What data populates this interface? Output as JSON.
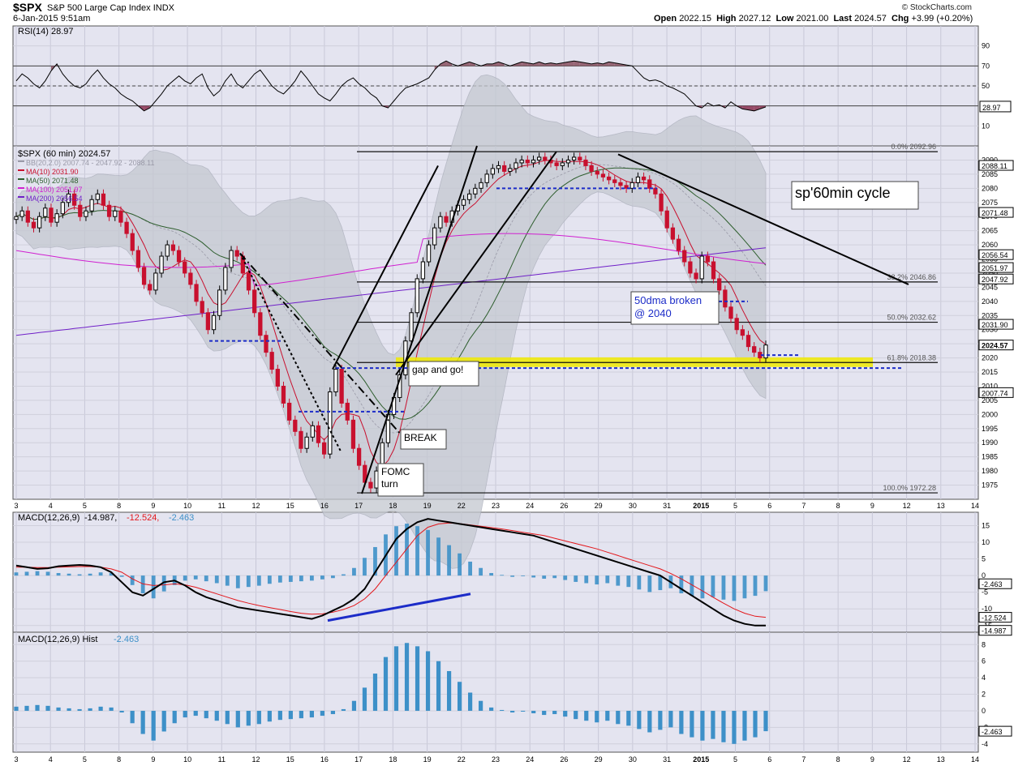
{
  "header": {
    "symbol": "$SPX",
    "name": "S&P 500 Large Cap Index",
    "exchange": "INDX",
    "date": "6-Jan-2015 9:51am",
    "open_label": "Open",
    "open": "2022.15",
    "high_label": "High",
    "high": "2027.12",
    "low_label": "Low",
    "low": "2021.00",
    "last_label": "Last",
    "last": "2024.57",
    "chg_label": "Chg",
    "chg": "+3.99 (+0.20%)",
    "copyright": "© StockCharts.com"
  },
  "chart_data": {
    "type": "candlestick",
    "colors": {
      "up": "#000000",
      "down": "#c8102e",
      "plot_bg": "#e4e4f0",
      "rsi_line": "#000000",
      "macd_line": "#000000",
      "signal_line": "#e3171b",
      "hist": "#3d90c8",
      "annotation_blue": "#1c2cc8",
      "support_zone": "#f0ea00"
    },
    "x_labels": [
      "3",
      "4",
      "5",
      "8",
      "9",
      "10",
      "11",
      "12",
      "15",
      "16",
      "17",
      "18",
      "19",
      "22",
      "23",
      "24",
      "26",
      "29",
      "30",
      "31",
      "2015",
      "5",
      "6",
      "7",
      "8",
      "9",
      "12",
      "13",
      "14"
    ],
    "panels": {
      "rsi": {
        "legend": "RSI(14) 28.97",
        "ylim": [
          -10,
          110
        ],
        "ticks": [
          90,
          70,
          50,
          30,
          10
        ],
        "reference_lines": [
          70,
          50,
          30
        ],
        "last_label": "28.97",
        "values": [
          55,
          62,
          58,
          52,
          48,
          55,
          65,
          72,
          62,
          55,
          50,
          48,
          52,
          60,
          66,
          58,
          52,
          48,
          42,
          38,
          35,
          30,
          25,
          28,
          35,
          42,
          50,
          55,
          60,
          55,
          52,
          58,
          62,
          48,
          40,
          45,
          55,
          62,
          52,
          48,
          55,
          62,
          66,
          58,
          50,
          45,
          42,
          48,
          55,
          65,
          58,
          50,
          42,
          38,
          35,
          42,
          50,
          55,
          58,
          52,
          48,
          42,
          38,
          30,
          28,
          35,
          42,
          48,
          50,
          52,
          55,
          58,
          66,
          72,
          75,
          72,
          70,
          72,
          74,
          72,
          70,
          72,
          72,
          74,
          72,
          70,
          72,
          74,
          73,
          72,
          74,
          72,
          73,
          72,
          73,
          74,
          75,
          74,
          73,
          72,
          73,
          72,
          74,
          73,
          72,
          71,
          70,
          64,
          58,
          55,
          56,
          54,
          50,
          48,
          45,
          42,
          36,
          30,
          28,
          33,
          30,
          31,
          28,
          34,
          30,
          27,
          26,
          25,
          27,
          29
        ]
      },
      "price": {
        "legend": [
          "$SPX (60 min) 2024.57",
          "BB(20,2.0) 2007.74 - 2047.92 - 2088.11",
          "MA(10) 2031.90",
          "MA(50) 2071.48",
          "MA(100) 2051.97",
          "MA(200) 2056.54"
        ],
        "legend_colors": [
          "#000000",
          "#9a9aa8",
          "#c8102e",
          "#2e5e2e",
          "#d020d0",
          "#7020c8"
        ],
        "ylim": [
          1970,
          2095
        ],
        "ticks": [
          2090,
          2085,
          2080,
          2075,
          2070,
          2065,
          2060,
          2055,
          2050,
          2045,
          2040,
          2035,
          2030,
          2025,
          2020,
          2015,
          2010,
          2005,
          2000,
          1995,
          1990,
          1985,
          1980,
          1975
        ],
        "close": [
          2070,
          2072,
          2068,
          2066,
          2070,
          2073,
          2068,
          2071,
          2075,
          2078,
          2074,
          2070,
          2072,
          2076,
          2078,
          2074,
          2070,
          2072,
          2068,
          2064,
          2058,
          2052,
          2046,
          2044,
          2050,
          2056,
          2060,
          2058,
          2054,
          2050,
          2046,
          2040,
          2036,
          2030,
          2035,
          2044,
          2052,
          2058,
          2056,
          2050,
          2044,
          2036,
          2028,
          2022,
          2016,
          2010,
          2004,
          1998,
          1994,
          1988,
          1992,
          1996,
          1990,
          1986,
          2008,
          2016,
          2004,
          1998,
          1988,
          1982,
          1976,
          1974,
          1980,
          1990,
          2000,
          2006,
          2014,
          2026,
          2036,
          2048,
          2054,
          2060,
          2066,
          2070,
          2068,
          2072,
          2074,
          2076,
          2078,
          2080,
          2082,
          2085,
          2087,
          2088,
          2086,
          2087,
          2089,
          2090,
          2089,
          2090,
          2091,
          2090,
          2089,
          2088,
          2089,
          2090,
          2091,
          2090,
          2088,
          2086,
          2085,
          2084,
          2083,
          2082,
          2081,
          2080,
          2082,
          2084,
          2083,
          2080,
          2078,
          2072,
          2066,
          2062,
          2058,
          2054,
          2050,
          2048,
          2056,
          2054,
          2048,
          2044,
          2038,
          2034,
          2030,
          2028,
          2024,
          2022,
          2020,
          2024.57
        ],
        "bollinger": {
          "upper_last": 2088.11,
          "middle_last": 2047.92,
          "lower_last": 2007.74
        },
        "ma_last": {
          "ma10": 2031.9,
          "ma50": 2071.48,
          "ma100": 2051.97,
          "ma200": 2056.54
        },
        "right_labels": [
          "2088.11",
          "2071.48",
          "2056.54",
          "2051.97",
          "2047.92",
          "2031.90",
          "2024.57",
          "2007.74"
        ],
        "fib_levels": [
          {
            "label": "0.0% 2092.96",
            "value": 2092.96
          },
          {
            "label": "38.2% 2046.86",
            "value": 2046.86
          },
          {
            "label": "50.0% 2032.62",
            "value": 2032.62
          },
          {
            "label": "61.8% 2018.38",
            "value": 2018.38
          },
          {
            "label": "100.0% 1972.28",
            "value": 1972.28
          }
        ],
        "annotations": {
          "cycle": "sp'60min cycle",
          "fifty_dma_1": "50dma broken",
          "fifty_dma_2": "@ 2040",
          "gap": "gap and go!",
          "break": "BREAK",
          "fomc_1": "FOMC",
          "fomc_2": "turn"
        }
      },
      "macd": {
        "legend": [
          "MACD(12,26,9)",
          "-14.987,",
          "-12.524,",
          "-2.463"
        ],
        "legend_colors": [
          "#000000",
          "#000000",
          "#e3171b",
          "#3d90c8"
        ],
        "ylim": [
          -17,
          19
        ],
        "ticks": [
          15,
          10,
          5,
          0,
          -5,
          -10,
          -15
        ],
        "right_labels": [
          "-2.463",
          "-12.524",
          "-14.987"
        ],
        "macd": [
          3,
          2.5,
          2,
          2.2,
          2.8,
          3,
          3.2,
          3,
          2.5,
          1,
          -2,
          -5,
          -6,
          -4,
          -2,
          -1.5,
          -3,
          -5,
          -6.5,
          -7.5,
          -8.5,
          -9.5,
          -10,
          -10.5,
          -11,
          -11.5,
          -12,
          -12.5,
          -13,
          -12,
          -10.5,
          -9,
          -7,
          -4,
          1,
          6,
          11,
          14,
          16,
          17,
          16.5,
          16,
          15.5,
          15,
          14.5,
          14,
          13.5,
          13,
          12.5,
          12,
          11,
          10,
          9,
          8,
          7,
          6,
          5,
          4,
          3,
          2,
          1,
          0,
          -2,
          -4,
          -6,
          -8,
          -10,
          -12,
          -13.5,
          -14.5,
          -15,
          -14.987
        ],
        "signal": [
          2.5,
          2.5,
          2.4,
          2.4,
          2.5,
          2.6,
          2.7,
          2.7,
          2.5,
          2,
          1,
          -1,
          -2.5,
          -3,
          -2.8,
          -2.5,
          -2.8,
          -3.5,
          -4.5,
          -5.5,
          -6.5,
          -7.5,
          -8.3,
          -9,
          -9.6,
          -10.2,
          -10.8,
          -11.3,
          -11.6,
          -11.5,
          -11,
          -10.2,
          -9,
          -7,
          -4,
          0,
          4,
          8,
          12,
          14.5,
          15.5,
          15.8,
          15.6,
          15.2,
          14.8,
          14.4,
          14,
          13.5,
          13,
          12.5,
          12,
          11.2,
          10.4,
          9.6,
          8.8,
          8,
          7,
          6,
          5,
          4,
          3,
          2,
          0.6,
          -1,
          -2.8,
          -4.6,
          -6.5,
          -8.3,
          -10,
          -11.3,
          -12.2,
          -12.524
        ]
      },
      "hist": {
        "legend": [
          "MACD(12,26,9) Hist",
          "-2.463"
        ],
        "legend_colors": [
          "#000000",
          "#3d90c8"
        ],
        "ylim": [
          -5,
          9.5
        ],
        "ticks": [
          8,
          6,
          4,
          2,
          0,
          -2,
          -4
        ],
        "right_label": "-2.463",
        "values": [
          0.5,
          0.6,
          0.7,
          0.6,
          0.4,
          0.3,
          0.2,
          0.3,
          0.5,
          0.4,
          -0.2,
          -1.5,
          -2.8,
          -3.6,
          -2.5,
          -1.5,
          -0.8,
          -0.6,
          -0.9,
          -1.2,
          -1.6,
          -2,
          -1.8,
          -1.6,
          -1.3,
          -1.1,
          -1,
          -0.9,
          -0.8,
          -0.6,
          -0.4,
          0.2,
          1.2,
          2.8,
          4.5,
          6.5,
          7.8,
          8.2,
          7.8,
          7.2,
          6,
          4.8,
          3.5,
          2.2,
          1.2,
          0.4,
          0.1,
          -0.2,
          -0.1,
          -0.3,
          -0.5,
          -0.4,
          -0.7,
          -1,
          -1.2,
          -1.4,
          -1.2,
          -1.6,
          -1.8,
          -2.2,
          -2.6,
          -2.3,
          -2,
          -2.8,
          -3.2,
          -3.6,
          -3.4,
          -3.8,
          -4,
          -3.6,
          -3.2,
          -2.463
        ]
      }
    }
  }
}
